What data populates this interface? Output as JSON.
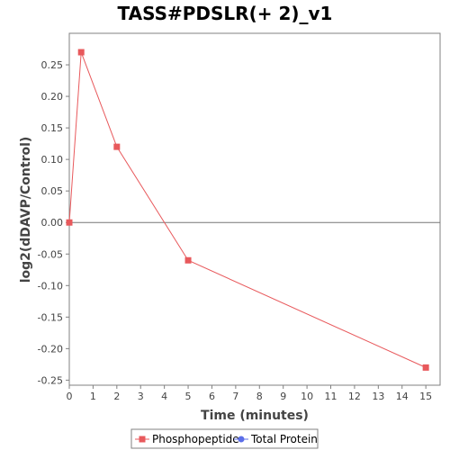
{
  "chart_data": {
    "type": "line",
    "title": "TASS#PDSLR(+ 2)_v1",
    "xlabel": "Time (minutes)",
    "ylabel": "log2(dDAVP/Control)",
    "xlim": [
      0,
      15.6
    ],
    "ylim": [
      -0.258,
      0.3
    ],
    "x_ticks": [
      0,
      1,
      2,
      3,
      4,
      5,
      6,
      7,
      8,
      9,
      10,
      11,
      12,
      13,
      14,
      15
    ],
    "x_tick_labels": [
      "0",
      "1",
      "2",
      "3",
      "4",
      "5",
      "6",
      "7",
      "8",
      "9",
      "10",
      "11",
      "12",
      "13",
      "14",
      "15"
    ],
    "y_ticks": [
      0.25,
      0.2,
      0.15,
      0.1,
      0.05,
      0.0,
      -0.05,
      -0.1,
      -0.15,
      -0.2,
      -0.25
    ],
    "y_tick_labels": [
      "0.25",
      "0.20",
      "0.15",
      "0.10",
      "0.05",
      "0.00",
      "-0.05",
      "-0.10",
      "-0.15",
      "-0.20",
      "-0.25"
    ],
    "zero_line": true,
    "grid": false,
    "legend_position": "bottom",
    "series": [
      {
        "name": "Phosphopeptide",
        "color": "#e8595c",
        "marker": "square",
        "x": [
          0,
          0.5,
          2,
          5,
          15
        ],
        "y": [
          0.0,
          0.27,
          0.12,
          -0.06,
          -0.23
        ]
      },
      {
        "name": "Total Protein",
        "color": "#5b6ee8",
        "marker": "circle",
        "x": [],
        "y": []
      }
    ]
  }
}
